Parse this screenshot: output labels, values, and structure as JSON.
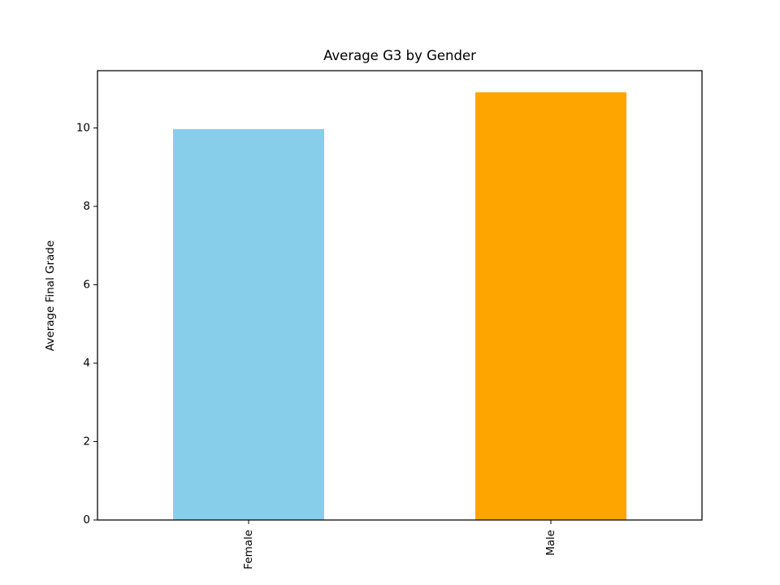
{
  "chart_data": {
    "type": "bar",
    "title": "Average G3 by Gender",
    "xlabel": "",
    "ylabel": "Average Final Grade",
    "categories": [
      "Female",
      "Male"
    ],
    "values": [
      9.97,
      10.91
    ],
    "colors": [
      "#87CEEB",
      "#FFA500"
    ],
    "ylim": [
      0,
      11.46
    ],
    "yticks": [
      0,
      2,
      4,
      6,
      8,
      10
    ],
    "ytick_labels": [
      "0",
      "2",
      "4",
      "6",
      "8",
      "10"
    ],
    "grid": false,
    "legend": "none"
  }
}
